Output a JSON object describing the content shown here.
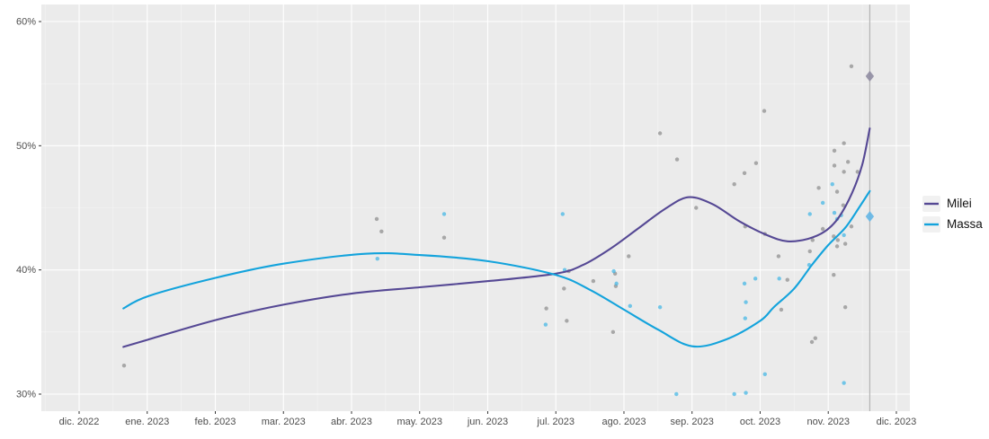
{
  "chart_data": {
    "type": "scatter",
    "subtype": "polling-scatter-with-smooth-trend",
    "title": "",
    "xlabel": "",
    "ylabel": "",
    "x_axis": {
      "tick_labels": [
        "dic. 2022",
        "ene. 2023",
        "feb. 2023",
        "mar. 2023",
        "abr. 2023",
        "may. 2023",
        "jun. 2023",
        "jul. 2023",
        "ago. 2023",
        "sep. 2023",
        "oct. 2023",
        "nov. 2023",
        "dic. 2023"
      ],
      "tick_values_months": [
        0,
        1,
        2,
        3,
        4,
        5,
        6,
        7,
        8,
        9,
        10,
        11,
        12
      ],
      "range_months": [
        -0.55,
        12.2
      ]
    },
    "y_axis": {
      "tick_labels": [
        "30%",
        "40%",
        "50%",
        "60%"
      ],
      "tick_values": [
        30,
        40,
        50,
        60
      ],
      "minor_tick_values": [
        35,
        45,
        55
      ],
      "range": [
        28.6,
        61.4
      ]
    },
    "grid": "on",
    "legend_position": "right",
    "event_line": {
      "x_months": 11.61,
      "color": "#b4b4b4"
    },
    "series": [
      {
        "name": "Milei",
        "line_color": "#554894",
        "point_color": "#8c8c8c",
        "result_color": "#908da2",
        "smooth": [
          [
            0.65,
            33.8
          ],
          [
            1.02,
            34.4
          ],
          [
            2.03,
            36.0
          ],
          [
            3.0,
            37.2
          ],
          [
            4.01,
            38.1
          ],
          [
            5.0,
            38.6
          ],
          [
            6.01,
            39.1
          ],
          [
            7.0,
            39.7
          ],
          [
            7.4,
            40.4
          ],
          [
            7.8,
            41.7
          ],
          [
            8.2,
            43.3
          ],
          [
            8.6,
            44.9
          ],
          [
            8.94,
            45.85
          ],
          [
            9.3,
            45.3
          ],
          [
            9.7,
            43.9
          ],
          [
            10.1,
            42.8
          ],
          [
            10.4,
            42.3
          ],
          [
            10.7,
            42.5
          ],
          [
            10.95,
            43.1
          ],
          [
            11.15,
            44.2
          ],
          [
            11.35,
            46.2
          ],
          [
            11.5,
            48.5
          ],
          [
            11.61,
            51.4
          ]
        ],
        "scatter": [
          [
            0.66,
            32.3
          ],
          [
            4.37,
            44.1
          ],
          [
            4.44,
            43.1
          ],
          [
            5.36,
            42.6
          ],
          [
            6.86,
            36.9
          ],
          [
            7.12,
            38.5
          ],
          [
            7.16,
            35.9
          ],
          [
            7.19,
            39.9
          ],
          [
            7.55,
            39.1
          ],
          [
            7.84,
            35.0
          ],
          [
            7.87,
            39.7
          ],
          [
            7.88,
            38.7
          ],
          [
            8.07,
            41.1
          ],
          [
            8.53,
            51.0
          ],
          [
            8.78,
            48.9
          ],
          [
            9.06,
            45.0
          ],
          [
            9.62,
            46.9
          ],
          [
            9.77,
            47.8
          ],
          [
            9.78,
            43.5
          ],
          [
            9.94,
            48.6
          ],
          [
            10.06,
            52.8
          ],
          [
            10.07,
            42.9
          ],
          [
            10.27,
            41.1
          ],
          [
            10.31,
            36.8
          ],
          [
            10.4,
            39.2
          ],
          [
            10.73,
            41.5
          ],
          [
            10.76,
            34.2
          ],
          [
            10.81,
            34.5
          ],
          [
            10.77,
            42.4
          ],
          [
            10.86,
            46.6
          ],
          [
            10.92,
            43.3
          ],
          [
            11.08,
            39.6
          ],
          [
            11.08,
            42.7
          ],
          [
            11.09,
            48.4
          ],
          [
            11.09,
            49.6
          ],
          [
            11.13,
            41.9
          ],
          [
            11.13,
            46.3
          ],
          [
            11.14,
            42.4
          ],
          [
            11.22,
            45.2
          ],
          [
            11.23,
            50.2
          ],
          [
            11.23,
            47.9
          ],
          [
            11.25,
            42.1
          ],
          [
            11.25,
            37.0
          ],
          [
            11.29,
            48.7
          ],
          [
            11.34,
            56.4
          ],
          [
            11.34,
            43.5
          ],
          [
            11.43,
            47.9
          ]
        ],
        "result_point": {
          "x_months": 11.61,
          "value": 55.6
        }
      },
      {
        "name": "Massa",
        "line_color": "#13a3dc",
        "point_color": "#41b5e4",
        "result_color": "#64b6e6",
        "smooth": [
          [
            0.65,
            36.9
          ],
          [
            1.02,
            37.9
          ],
          [
            2.03,
            39.4
          ],
          [
            3.0,
            40.5
          ],
          [
            4.2,
            41.3
          ],
          [
            5.0,
            41.2
          ],
          [
            6.01,
            40.7
          ],
          [
            7.0,
            39.6
          ],
          [
            7.5,
            38.4
          ],
          [
            8.0,
            36.8
          ],
          [
            8.5,
            35.2
          ],
          [
            9.0,
            33.85
          ],
          [
            9.5,
            34.4
          ],
          [
            10.0,
            35.9
          ],
          [
            10.2,
            37.0
          ],
          [
            10.5,
            38.5
          ],
          [
            10.76,
            40.4
          ],
          [
            11.0,
            42.0
          ],
          [
            11.25,
            43.4
          ],
          [
            11.45,
            45.0
          ],
          [
            11.61,
            46.35
          ]
        ],
        "scatter": [
          [
            4.38,
            40.9
          ],
          [
            5.36,
            44.5
          ],
          [
            6.85,
            35.6
          ],
          [
            7.1,
            44.5
          ],
          [
            7.13,
            40.0
          ],
          [
            7.85,
            39.9
          ],
          [
            7.89,
            38.9
          ],
          [
            8.09,
            37.1
          ],
          [
            8.53,
            37.0
          ],
          [
            8.77,
            30.0
          ],
          [
            9.62,
            30.0
          ],
          [
            9.77,
            38.9
          ],
          [
            9.78,
            36.1
          ],
          [
            9.79,
            37.4
          ],
          [
            9.79,
            30.1
          ],
          [
            9.93,
            39.3
          ],
          [
            10.07,
            31.6
          ],
          [
            10.28,
            39.3
          ],
          [
            10.72,
            40.4
          ],
          [
            10.73,
            44.5
          ],
          [
            10.92,
            45.4
          ],
          [
            11.06,
            46.9
          ],
          [
            11.09,
            44.6
          ],
          [
            11.13,
            44.1
          ],
          [
            11.19,
            44.4
          ],
          [
            11.23,
            42.8
          ],
          [
            11.23,
            30.9
          ]
        ],
        "result_point": {
          "x_months": 11.61,
          "value": 44.3
        }
      }
    ],
    "colors": {
      "panel_background": "#ebebeb",
      "major_grid": "#ffffff",
      "minor_grid": "#f6f6f6",
      "axis_text": "#4d4d4d",
      "tick_mark": "#333333"
    }
  },
  "legend": {
    "items": [
      {
        "label": "Milei"
      },
      {
        "label": "Massa"
      }
    ]
  }
}
